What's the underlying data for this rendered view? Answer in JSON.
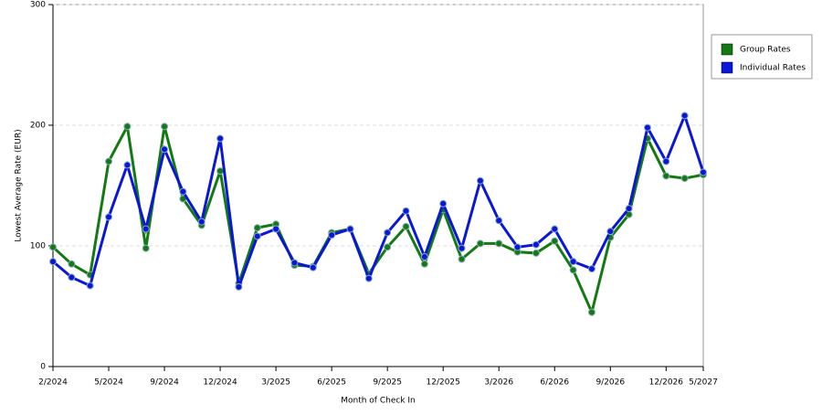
{
  "chart_data": {
    "type": "line",
    "y_label": "Lowest Average Rate (EUR)",
    "x_label": "Month of Check In",
    "categories": [
      "2/2024",
      null,
      null,
      "5/2024",
      null,
      null,
      "9/2024",
      null,
      null,
      "12/2024",
      null,
      null,
      "3/2025",
      null,
      null,
      "6/2025",
      null,
      null,
      "9/2025",
      null,
      null,
      "12/2025",
      null,
      null,
      "3/2026",
      null,
      null,
      "6/2026",
      null,
      null,
      "9/2026",
      null,
      null,
      "12/2026",
      null,
      "5/2027"
    ],
    "series": [
      {
        "name": "Group Rates",
        "color": "#137a13",
        "values": [
          99,
          85,
          76,
          170,
          199,
          98,
          199,
          139,
          117,
          162,
          69,
          115,
          118,
          84,
          83,
          111,
          114,
          77,
          99,
          116,
          85,
          130,
          89,
          102,
          102,
          95,
          94,
          104,
          80,
          45,
          107,
          126,
          189,
          158,
          156,
          159
        ]
      },
      {
        "name": "Individual Rates",
        "color": "#0a16d8",
        "values": [
          87,
          74,
          67,
          124,
          167,
          114,
          180,
          145,
          120,
          189,
          66,
          108,
          114,
          86,
          82,
          109,
          114,
          73,
          111,
          129,
          91,
          135,
          98,
          154,
          121,
          99,
          101,
          114,
          87,
          81,
          112,
          131,
          198,
          170,
          208,
          161
        ]
      }
    ],
    "ylim": [
      0,
      300
    ],
    "yticks": [
      0,
      100,
      200,
      300
    ],
    "grid": true,
    "legend": "right"
  }
}
